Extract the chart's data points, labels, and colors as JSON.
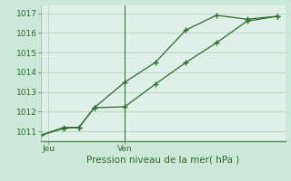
{
  "background_color": "#cce8d8",
  "plot_bg_color": "#dff0e8",
  "grid_color": "#b8d8c8",
  "line_color": "#2d6b2d",
  "vline_color": "#2d6b2d",
  "xlabel": "Pression niveau de la mer( hPa )",
  "ylabel_ticks": [
    1011,
    1012,
    1013,
    1014,
    1015,
    1016,
    1017
  ],
  "ylim": [
    1010.5,
    1017.4
  ],
  "xlim": [
    0,
    16
  ],
  "x_tick_positions": [
    0.5,
    5.5
  ],
  "x_tick_labels": [
    "Jeu",
    "Ven"
  ],
  "vline_x": 5.5,
  "series1_x": [
    0.0,
    1.5,
    2.5,
    3.5,
    5.5,
    7.5,
    9.5,
    11.5,
    13.5,
    15.5
  ],
  "series1_y": [
    1010.8,
    1011.15,
    1011.2,
    1012.2,
    1012.25,
    1013.4,
    1014.5,
    1015.5,
    1016.6,
    1016.85
  ],
  "series2_x": [
    0.0,
    1.5,
    2.5,
    3.5,
    5.5,
    7.5,
    9.5,
    11.5,
    13.5,
    15.5
  ],
  "series2_y": [
    1010.8,
    1011.2,
    1011.2,
    1012.2,
    1013.5,
    1014.5,
    1016.15,
    1016.9,
    1016.7,
    1016.85
  ],
  "tick_fontsize": 6.5,
  "xlabel_fontsize": 7.5
}
